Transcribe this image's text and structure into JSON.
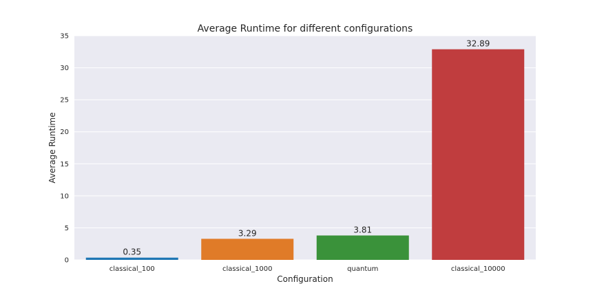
{
  "chart_data": {
    "type": "bar",
    "title": "Average Runtime for different configurations",
    "xlabel": "Configuration",
    "ylabel": "Average Runtime",
    "categories": [
      "classical_100",
      "classical_1000",
      "quantum",
      "classical_10000"
    ],
    "values": [
      0.35,
      3.29,
      3.81,
      32.89
    ],
    "data_labels": [
      "0.35",
      "3.29",
      "3.81",
      "32.89"
    ],
    "colors": [
      "#1f77b4",
      "#e07b28",
      "#3a923a",
      "#c03d3e"
    ],
    "ylim": [
      0,
      35
    ],
    "yticks": [
      0,
      5,
      10,
      15,
      20,
      25,
      30,
      35
    ],
    "grid": true,
    "background": "#eaeaf2"
  }
}
